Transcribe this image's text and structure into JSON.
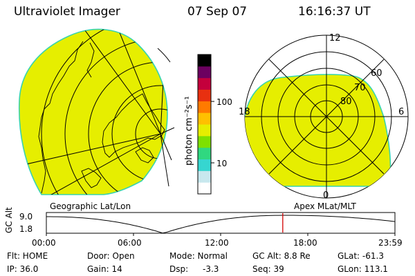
{
  "header": {
    "title": "Ultraviolet Imager",
    "date": "07 Sep 07",
    "time": "16:16:37 UT"
  },
  "colors": {
    "disk_fill": "#e6ee00",
    "disk_edge": "#37d4b0",
    "time_marker": "#d40000"
  },
  "colorbar": {
    "unit_label": "photon cm⁻²s⁻¹",
    "ticks": [
      "100",
      "10"
    ],
    "stops": [
      "#ffffff",
      "#c8e8ee",
      "#36d6d0",
      "#30d880",
      "#7ee000",
      "#e6ee00",
      "#ffc000",
      "#ff7a00",
      "#e83010",
      "#c4003c",
      "#6c0060",
      "#000000"
    ]
  },
  "left_panel": {
    "caption": "Geographic Lat/Lon"
  },
  "right_panel": {
    "caption": "Apex MLat/MLT",
    "mlt_labels": {
      "top": "12",
      "bottom": "0",
      "left": "18",
      "right": "6"
    },
    "lat_labels": [
      "60",
      "70",
      "80"
    ]
  },
  "timeline": {
    "axis_label": "GC Alt",
    "y_ticks": [
      "9.0",
      "1.8"
    ],
    "x_ticks": [
      "00:00",
      "06:00",
      "12:00",
      "18:00",
      "23:59"
    ],
    "marker_hour": 16.277,
    "min_hour": 8.05,
    "max_hour": 16.5
  },
  "status": {
    "filter_label": "Flt: HOME",
    "ip_label": "IP: 36.0",
    "door_label": "Door: Open",
    "gain_label": "Gain: 14",
    "mode_label": "Mode: Normal",
    "dsp_label": "Dsp:",
    "dsp_value": "-3.3",
    "gc_alt_label": "GC Alt: 8.8 Re",
    "seq_label": "Seq: 39",
    "glat_label": "GLat: -61.3",
    "glon_label": "GLon: 113.1"
  }
}
